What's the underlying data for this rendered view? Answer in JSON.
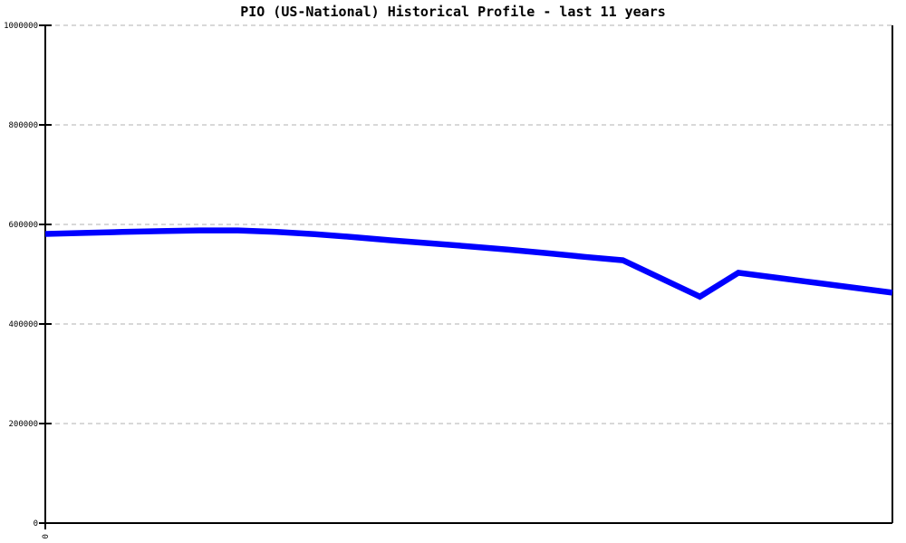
{
  "chart_data": {
    "type": "line",
    "title": "PIO (US-National) Historical Profile - last 11 years",
    "xlabel": "",
    "ylabel": "",
    "x_description": "23 semi-annual points spanning the last 11 years; only first x tick labeled",
    "x": [
      0,
      1,
      2,
      3,
      4,
      5,
      6,
      7,
      8,
      9,
      10,
      11,
      12,
      13,
      14,
      15,
      16,
      17,
      18,
      19,
      20,
      21,
      22
    ],
    "series": [
      {
        "name": "PIO (US-National)",
        "color": "#0000ff",
        "values": [
          581000,
          583000,
          585000,
          586500,
          588000,
          588000,
          585000,
          580500,
          574500,
          568000,
          562000,
          556000,
          549500,
          542500,
          535000,
          528000,
          491500,
          455000,
          503000,
          493000,
          483000,
          473000,
          463000
        ]
      }
    ],
    "ylim": [
      0,
      1000000
    ],
    "xlim": [
      0,
      22
    ],
    "y_ticks": [
      0,
      200000,
      400000,
      600000,
      800000,
      1000000
    ],
    "y_tick_labels": [
      "0",
      "200000",
      "400000",
      "600000",
      "800000",
      "1000000"
    ],
    "x_ticks": [
      {
        "pos": 0,
        "label": "0"
      }
    ],
    "x_tick_label_rotation_deg": -90,
    "grid": "horizontal dashed",
    "legend_position": "none",
    "colors": {
      "line": "#0000ff",
      "grid": "#b0b0b0",
      "axis": "#000000",
      "background": "#ffffff",
      "title_text": "#000000"
    }
  }
}
